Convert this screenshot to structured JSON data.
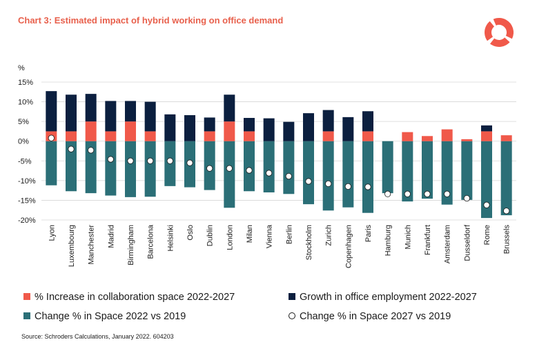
{
  "header": {
    "title": "Chart 3: Estimated impact of hybrid working on office demand"
  },
  "footer": {
    "source": "Source: Schroders Calculations, January 2022. 604203"
  },
  "colors": {
    "collaboration": "#f0594a",
    "growth": "#0b1f3f",
    "space2022": "#2b6f77",
    "space2027_fill": "#ffffff",
    "title": "#e8604c",
    "grid": "#d6d6d6"
  },
  "chart_data": {
    "type": "bar",
    "ylabel": "%",
    "ylim": [
      -20,
      15
    ],
    "yticks": [
      15,
      10,
      5,
      0,
      -5,
      -10,
      -15,
      -20
    ],
    "ytick_labels": [
      "15%",
      "10%",
      "5%",
      "0%",
      "-5%",
      "-10%",
      "-15%",
      "-20%"
    ],
    "grid": true,
    "legend_position": "bottom",
    "categories": [
      "Lyon",
      "Luxembourg",
      "Manchester",
      "Madrid",
      "Birmingham",
      "Barcelona",
      "Helsinki",
      "Oslo",
      "Dublin",
      "London",
      "Milan",
      "Vienna",
      "Berlin",
      "Stockholm",
      "Zurich",
      "Copenhagen",
      "Paris",
      "Hamburg",
      "Munich",
      "Frankfurt",
      "Amsterdam",
      "Dusseldorf",
      "Rome",
      "Brussels"
    ],
    "series": [
      {
        "name": "% Increase in collaboration space 2022-2027",
        "marker": "bar",
        "values": [
          2.5,
          2.5,
          5,
          2.5,
          5,
          2.5,
          0,
          0,
          2.5,
          5,
          2.5,
          0,
          0,
          0,
          2.5,
          0,
          2.5,
          0,
          2.3,
          1.3,
          3,
          0.5,
          2.5,
          1.5
        ]
      },
      {
        "name": "Growth in office employment 2022-2027",
        "marker": "bar",
        "values": [
          10.2,
          9.3,
          7,
          7.7,
          5.2,
          7.5,
          6.8,
          6.6,
          3.5,
          6.8,
          3.4,
          5.8,
          4.9,
          7.1,
          5.4,
          6.1,
          5.1,
          0,
          0,
          0,
          0,
          0,
          1.5,
          0
        ]
      },
      {
        "name": "Change % in Space 2022 vs 2019",
        "marker": "bar",
        "values": [
          -11.2,
          -12.7,
          -13.2,
          -13.8,
          -14.2,
          -14.1,
          -11.4,
          -11.7,
          -12.4,
          -16.9,
          -12.7,
          -13,
          -13.4,
          -16,
          -17.6,
          -16.8,
          -18.2,
          -13.2,
          -15.3,
          -14.6,
          -16.1,
          -14.9,
          -19.5,
          -18.8
        ]
      },
      {
        "name": "Change % in Space 2027 vs 2019",
        "marker": "point",
        "values": [
          0.8,
          -2,
          -2.3,
          -4.6,
          -5,
          -5,
          -5,
          -5.5,
          -6.9,
          -6.9,
          -7.4,
          -8.1,
          -8.9,
          -10.2,
          -10.8,
          -11.5,
          -11.6,
          -13.4,
          -13.4,
          -13.4,
          -13.4,
          -14.5,
          -16.2,
          -17.7
        ]
      }
    ]
  }
}
